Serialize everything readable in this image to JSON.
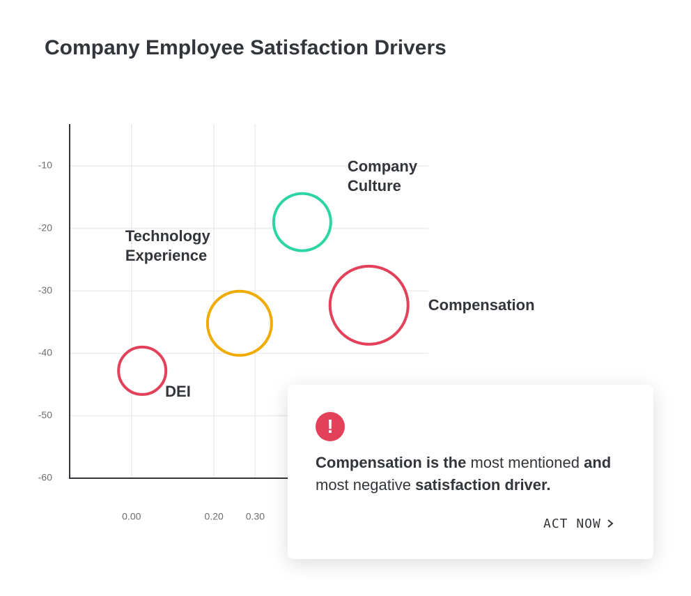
{
  "chart_data": {
    "type": "bubble",
    "title": "Company Employee Satisfaction Drivers",
    "xlim": [
      -0.15,
      0.72
    ],
    "xticks": [
      {
        "value": 0,
        "label": "0.00"
      },
      {
        "value": 0.2,
        "label": "0.20"
      },
      {
        "value": 0.3,
        "label": "0.30"
      }
    ],
    "ylim": [
      -60,
      -3.3
    ],
    "yticks": [
      -10,
      -20,
      -30,
      -40,
      -50,
      -60
    ],
    "grid": true,
    "series": [
      {
        "name": "DEI",
        "color": "#e3405a",
        "x": [
          0.026
        ],
        "values": [
          -42.8
        ],
        "sizes": [
          34
        ]
      },
      {
        "name": "Technology Experience",
        "color": "#f0ab00",
        "x": [
          0.262
        ],
        "values": [
          -35.2
        ],
        "sizes": [
          46
        ]
      },
      {
        "name": "Company Culture",
        "color": "#2dd4a4",
        "x": [
          0.414
        ],
        "values": [
          -19.0
        ],
        "sizes": [
          41
        ]
      },
      {
        "name": "Compensation",
        "color": "#e3405a",
        "x": [
          0.576
        ],
        "values": [
          -32.3
        ],
        "sizes": [
          56
        ]
      }
    ]
  },
  "card": {
    "icon": "!",
    "message": [
      {
        "text": "Compensation is the",
        "bold": true
      },
      {
        "text": " most mentioned ",
        "bold": false
      },
      {
        "text": "and",
        "bold": true
      },
      {
        "text": " most negative ",
        "bold": false
      },
      {
        "text": "satisfaction driver.",
        "bold": true
      }
    ],
    "action": "ACT NOW"
  }
}
